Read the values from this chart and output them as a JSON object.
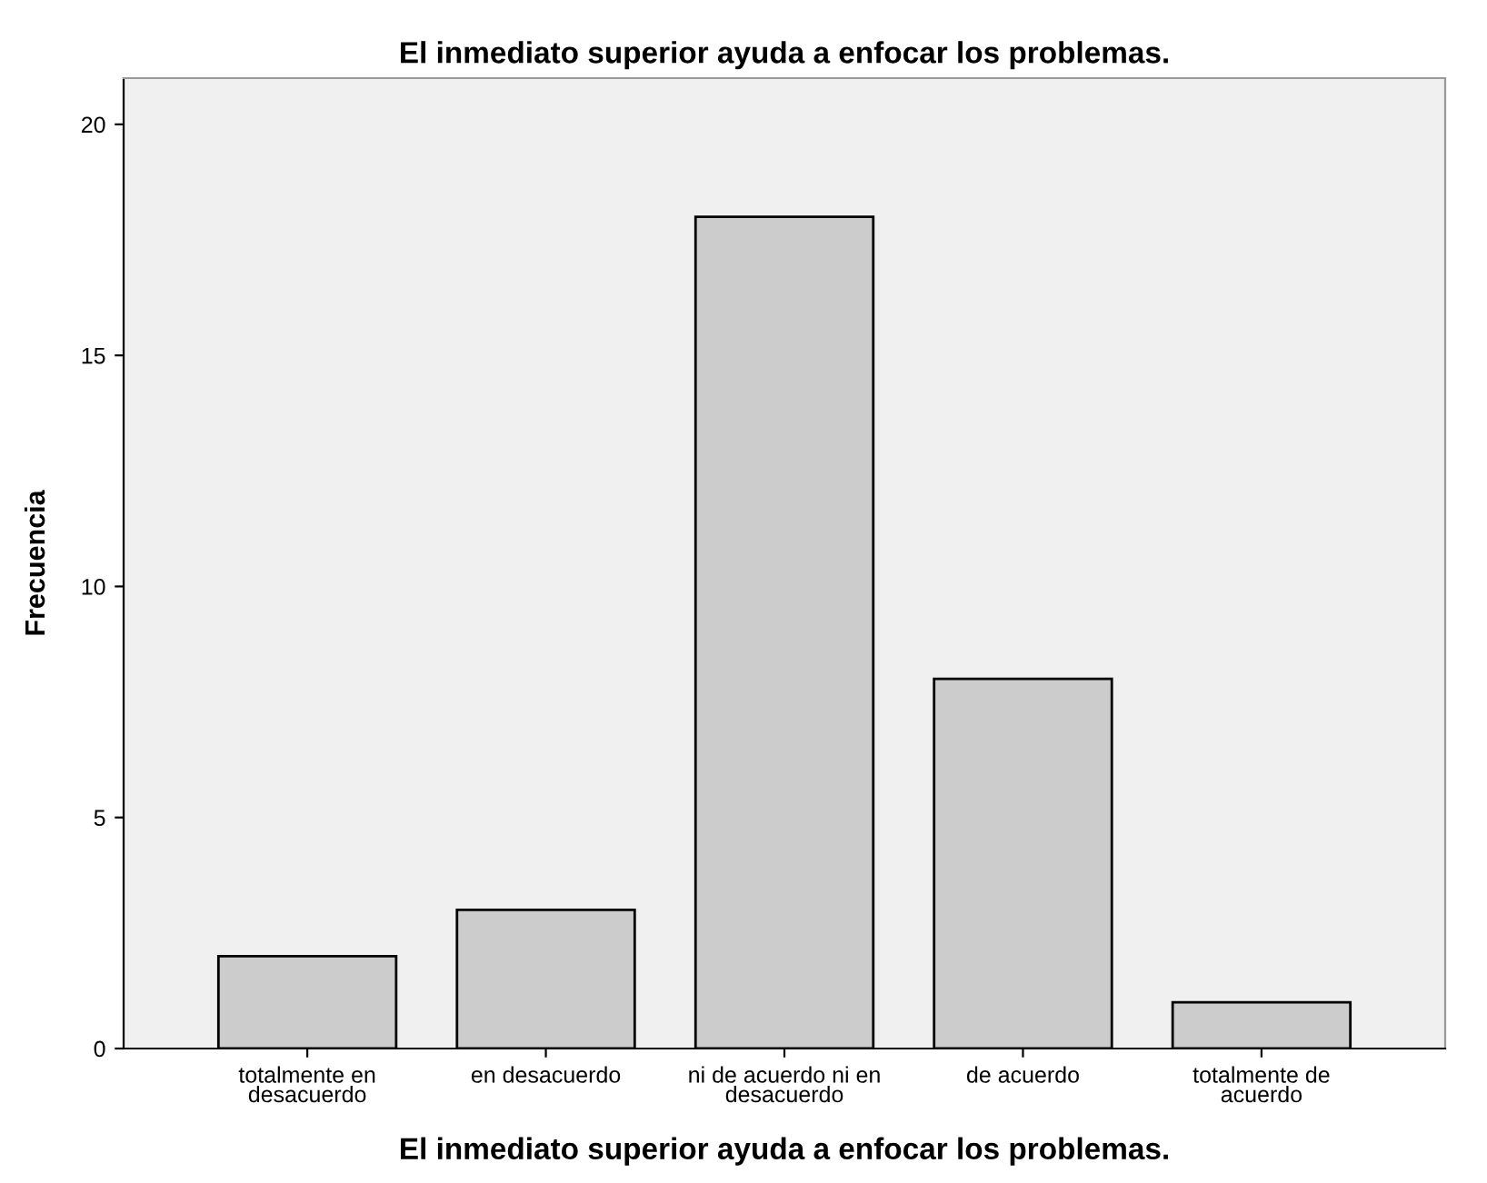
{
  "chart_data": {
    "type": "bar",
    "title": "El inmediato superior ayuda a enfocar los problemas.",
    "xlabel": "El inmediato superior ayuda a enfocar los problemas.",
    "ylabel": "Frecuencia",
    "categories": [
      "totalmente en\ndesacuerdo",
      "en desacuerdo",
      "ni de acuerdo ni en\ndesacuerdo",
      "de acuerdo",
      "totalmente de\nacuerdo"
    ],
    "values": [
      2,
      3,
      18,
      8,
      1
    ],
    "color": "#cccccc",
    "ylim": [
      0,
      21
    ],
    "yticks": [
      0,
      5,
      10,
      15,
      20
    ],
    "grid": false
  }
}
